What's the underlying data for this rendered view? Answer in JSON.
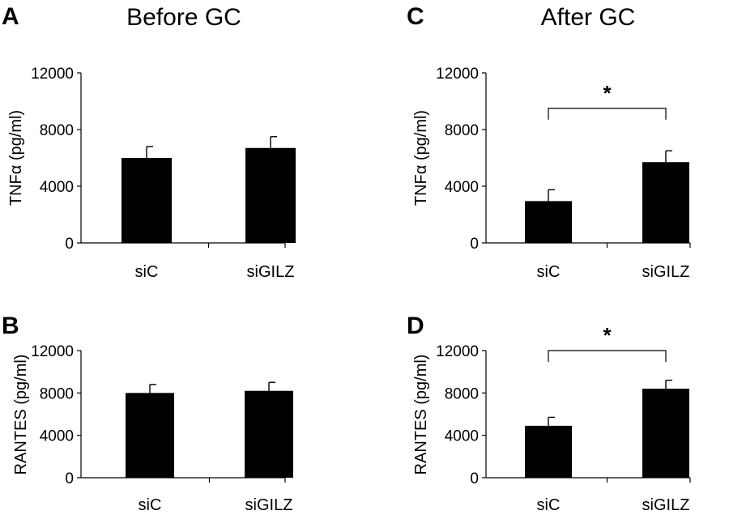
{
  "group_titles": {
    "before": "Before GC",
    "after": "After GC"
  },
  "colors": {
    "bar": "#000000",
    "axis": "#000000",
    "background": "#ffffff"
  },
  "chart_data": [
    {
      "panel": "A",
      "type": "bar",
      "title": "Before GC",
      "ylabel": "TNFα (pg/ml)",
      "xlabel": "",
      "categories": [
        "siC",
        "siGILZ"
      ],
      "values": [
        6000,
        6700
      ],
      "error": [
        800,
        800
      ],
      "ylim": [
        0,
        12000
      ],
      "yticks": [
        0,
        4000,
        8000,
        12000
      ],
      "ytick_labels": [
        "0",
        "4000",
        "8000",
        "12000"
      ],
      "grid": false,
      "significance": null
    },
    {
      "panel": "B",
      "type": "bar",
      "title": "",
      "ylabel": "RANTES (pg/ml)",
      "xlabel": "",
      "categories": [
        "siC",
        "siGILZ"
      ],
      "values": [
        8000,
        8200
      ],
      "error": [
        800,
        800
      ],
      "ylim": [
        0,
        12000
      ],
      "yticks": [
        0,
        4000,
        8000,
        12000
      ],
      "ytick_labels": [
        "0",
        "4000",
        "8000",
        "12000"
      ],
      "grid": false,
      "significance": null
    },
    {
      "panel": "C",
      "type": "bar",
      "title": "After GC",
      "ylabel": "TNFα (pg/ml)",
      "xlabel": "",
      "categories": [
        "siC",
        "siGILZ"
      ],
      "values": [
        2950,
        5700
      ],
      "error": [
        800,
        800
      ],
      "ylim": [
        0,
        12000
      ],
      "yticks": [
        0,
        4000,
        8000,
        12000
      ],
      "ytick_labels": [
        "0",
        "4000",
        "8000",
        "12000"
      ],
      "grid": false,
      "significance": {
        "between": [
          "siC",
          "siGILZ"
        ],
        "label": "*",
        "bracket_level": 9500
      }
    },
    {
      "panel": "D",
      "type": "bar",
      "title": "",
      "ylabel": "RANTES (pg/ml)",
      "xlabel": "",
      "categories": [
        "siC",
        "siGILZ"
      ],
      "values": [
        4900,
        8400
      ],
      "error": [
        800,
        800
      ],
      "ylim": [
        0,
        12000
      ],
      "yticks": [
        0,
        4000,
        8000,
        12000
      ],
      "ytick_labels": [
        "0",
        "4000",
        "8000",
        "12000"
      ],
      "grid": false,
      "significance": {
        "between": [
          "siC",
          "siGILZ"
        ],
        "label": "*",
        "bracket_level": 12000
      }
    }
  ]
}
